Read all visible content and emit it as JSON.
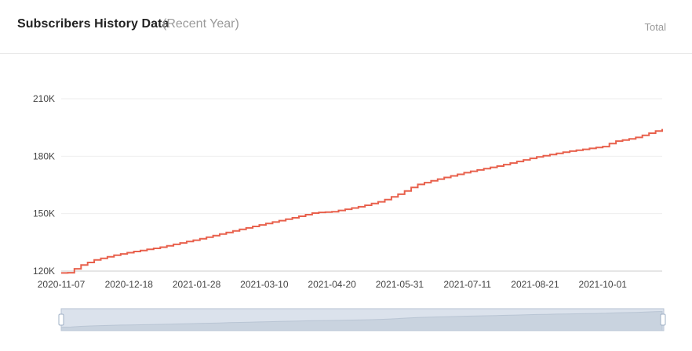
{
  "header": {
    "title": "Subscribers History Data",
    "subtitle": "(Recent Year)",
    "tab_total": "Total"
  },
  "colors": {
    "line": "#e8604c",
    "grid": "#eeeeee",
    "slider_fill": "#dbe2ec",
    "slider_border": "#b7c3d3",
    "slider_handle": "#9fb0c6"
  },
  "chart_data": {
    "type": "line",
    "title": "Subscribers History Data",
    "xlabel": "",
    "ylabel": "",
    "y_ticks": [
      120000,
      150000,
      180000,
      210000
    ],
    "y_tick_labels": [
      "120K",
      "150K",
      "180K",
      "210K"
    ],
    "ylim": [
      120000,
      210000
    ],
    "x_tick_labels": [
      "2020-11-07",
      "2020-12-18",
      "2021-01-28",
      "2021-03-10",
      "2021-04-20",
      "2021-05-31",
      "2021-07-11",
      "2021-08-21",
      "2021-10-01"
    ],
    "xlim": [
      "2020-11-07",
      "2021-11-06"
    ],
    "grid": true,
    "series": [
      {
        "name": "",
        "points": [
          [
            "2020-11-07",
            119000
          ],
          [
            "2020-11-12",
            119200
          ],
          [
            "2020-11-17",
            122500
          ],
          [
            "2020-11-27",
            125800
          ],
          [
            "2020-12-09",
            128300
          ],
          [
            "2020-12-18",
            129800
          ],
          [
            "2021-01-05",
            132300
          ],
          [
            "2021-01-28",
            136500
          ],
          [
            "2021-02-18",
            140800
          ],
          [
            "2021-03-10",
            144700
          ],
          [
            "2021-03-28",
            148000
          ],
          [
            "2021-04-09",
            150500
          ],
          [
            "2021-04-20",
            151000
          ],
          [
            "2021-05-08",
            153900
          ],
          [
            "2021-05-20",
            156600
          ],
          [
            "2021-05-31",
            160500
          ],
          [
            "2021-06-10",
            165000
          ],
          [
            "2021-06-20",
            167400
          ],
          [
            "2021-07-11",
            171800
          ],
          [
            "2021-07-30",
            175000
          ],
          [
            "2021-08-21",
            179500
          ],
          [
            "2021-09-10",
            182500
          ],
          [
            "2021-10-01",
            185000
          ],
          [
            "2021-10-08",
            187700
          ],
          [
            "2021-10-20",
            189500
          ],
          [
            "2021-11-06",
            194200
          ]
        ]
      }
    ]
  }
}
